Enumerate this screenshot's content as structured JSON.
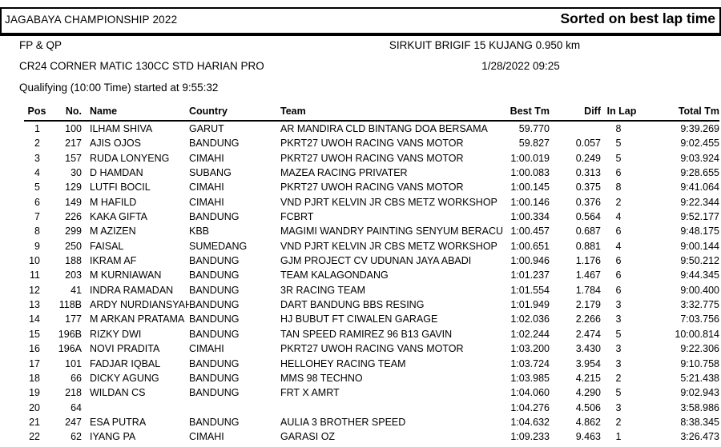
{
  "header": {
    "event_title": "JAGABAYA CHAMPIONSHIP 2022",
    "sort_note": "Sorted on best lap time",
    "session": "FP & QP",
    "circuit": "SIRKUIT BRIGIF 15 KUJANG 0.950 km",
    "class_name": "CR24 CORNER MATIC 130CC STD HARIAN PRO",
    "datetime": "1/28/2022 09:25",
    "session_info": "Qualifying (10:00 Time) started at 9:55:32"
  },
  "colors": {
    "text": "#000000",
    "background": "#ffffff",
    "rule": "#000000"
  },
  "table": {
    "columns": [
      "Pos",
      "No.",
      "Name",
      "Country",
      "Team",
      "Best Tm",
      "Diff",
      "In Lap",
      "Total Tm"
    ],
    "rows": [
      {
        "pos": "1",
        "no": "100",
        "name": "ILHAM SHIVA",
        "country": "GARUT",
        "team": "AR MANDIRA CLD BINTANG DOA BERSAMA",
        "best": "59.770",
        "diff": "",
        "inlap": "8",
        "total": "9:39.269"
      },
      {
        "pos": "2",
        "no": "217",
        "name": "AJIS OJOS",
        "country": "BANDUNG",
        "team": "PKRT27 UWOH RACING VANS MOTOR",
        "best": "59.827",
        "diff": "0.057",
        "inlap": "5",
        "total": "9:02.455"
      },
      {
        "pos": "3",
        "no": "157",
        "name": "RUDA LONYENG",
        "country": "CIMAHI",
        "team": "PKRT27 UWOH RACING VANS MOTOR",
        "best": "1:00.019",
        "diff": "0.249",
        "inlap": "5",
        "total": "9:03.924"
      },
      {
        "pos": "4",
        "no": "30",
        "name": "D HAMDAN",
        "country": "SUBANG",
        "team": "MAZEA RACING PRIVATER",
        "best": "1:00.083",
        "diff": "0.313",
        "inlap": "6",
        "total": "9:28.655"
      },
      {
        "pos": "5",
        "no": "129",
        "name": "LUTFI BOCIL",
        "country": "CIMAHI",
        "team": "PKRT27 UWOH RACING VANS MOTOR",
        "best": "1:00.145",
        "diff": "0.375",
        "inlap": "8",
        "total": "9:41.064"
      },
      {
        "pos": "6",
        "no": "149",
        "name": "M HAFILD",
        "country": "CIMAHI",
        "team": "VND PJRT KELVIN JR CBS METZ WORKSHOP",
        "best": "1:00.146",
        "diff": "0.376",
        "inlap": "2",
        "total": "9:22.344"
      },
      {
        "pos": "7",
        "no": "226",
        "name": "KAKA GIFTA",
        "country": "BANDUNG",
        "team": "FCBRT",
        "best": "1:00.334",
        "diff": "0.564",
        "inlap": "4",
        "total": "9:52.177"
      },
      {
        "pos": "8",
        "no": "299",
        "name": "M AZIZEN",
        "country": "KBB",
        "team": "MAGIMI WANDRY PAINTING SENYUM BERACU",
        "best": "1:00.457",
        "diff": "0.687",
        "inlap": "6",
        "total": "9:48.175"
      },
      {
        "pos": "9",
        "no": "250",
        "name": "FAISAL",
        "country": "SUMEDANG",
        "team": "VND PJRT KELVIN JR CBS METZ WORKSHOP",
        "best": "1:00.651",
        "diff": "0.881",
        "inlap": "4",
        "total": "9:00.144"
      },
      {
        "pos": "10",
        "no": "188",
        "name": "IKRAM AF",
        "country": "BANDUNG",
        "team": "GJM PROJECT CV UDUNAN JAYA ABADI",
        "best": "1:00.946",
        "diff": "1.176",
        "inlap": "6",
        "total": "9:50.212"
      },
      {
        "pos": "11",
        "no": "203",
        "name": "M KURNIAWAN",
        "country": "BANDUNG",
        "team": "TEAM KALAGONDANG",
        "best": "1:01.237",
        "diff": "1.467",
        "inlap": "6",
        "total": "9:44.345"
      },
      {
        "pos": "12",
        "no": "41",
        "name": "INDRA RAMADAN",
        "country": "BANDUNG",
        "team": "3R RACING TEAM",
        "best": "1:01.554",
        "diff": "1.784",
        "inlap": "6",
        "total": "9:00.400"
      },
      {
        "pos": "13",
        "no": "118B",
        "name": "ARDY NURDIANSYAH",
        "country": "BANDUNG",
        "team": "DART BANDUNG BBS RESING",
        "best": "1:01.949",
        "diff": "2.179",
        "inlap": "3",
        "total": "3:32.775"
      },
      {
        "pos": "14",
        "no": "177",
        "name": "M ARKAN PRATAMA",
        "country": "BANDUNG",
        "team": "HJ BUBUT FT CIWALEN GARAGE",
        "best": "1:02.036",
        "diff": "2.266",
        "inlap": "3",
        "total": "7:03.756"
      },
      {
        "pos": "15",
        "no": "196B",
        "name": "RIZKY DWI",
        "country": "BANDUNG",
        "team": "TAN SPEED RAMIREZ 96 B13 GAVIN",
        "best": "1:02.244",
        "diff": "2.474",
        "inlap": "5",
        "total": "10:00.814"
      },
      {
        "pos": "16",
        "no": "196A",
        "name": "NOVI PRADITA",
        "country": "CIMAHI",
        "team": "PKRT27 UWOH RACING VANS MOTOR",
        "best": "1:03.200",
        "diff": "3.430",
        "inlap": "3",
        "total": "9:22.306"
      },
      {
        "pos": "17",
        "no": "101",
        "name": "FADJAR IQBAL",
        "country": "BANDUNG",
        "team": "HELLOHEY RACING TEAM",
        "best": "1:03.724",
        "diff": "3.954",
        "inlap": "3",
        "total": "9:10.758"
      },
      {
        "pos": "18",
        "no": "66",
        "name": "DICKY AGUNG",
        "country": "BANDUNG",
        "team": "MMS 98 TECHNO",
        "best": "1:03.985",
        "diff": "4.215",
        "inlap": "2",
        "total": "5:21.438"
      },
      {
        "pos": "19",
        "no": "218",
        "name": "WILDAN CS",
        "country": "BANDUNG",
        "team": "FRT X AMRT",
        "best": "1:04.060",
        "diff": "4.290",
        "inlap": "5",
        "total": "9:02.943"
      },
      {
        "pos": "20",
        "no": "64",
        "name": "",
        "country": "",
        "team": "",
        "best": "1:04.276",
        "diff": "4.506",
        "inlap": "3",
        "total": "3:58.986"
      },
      {
        "pos": "21",
        "no": "247",
        "name": "ESA PUTRA",
        "country": "BANDUNG",
        "team": "AULIA 3 BROTHER SPEED",
        "best": "1:04.632",
        "diff": "4.862",
        "inlap": "2",
        "total": "8:38.345"
      },
      {
        "pos": "22",
        "no": "62",
        "name": "IYANG PA",
        "country": "CIMAHI",
        "team": "GARASI OZ",
        "best": "1:09.233",
        "diff": "9.463",
        "inlap": "1",
        "total": "3:26.473"
      }
    ]
  }
}
